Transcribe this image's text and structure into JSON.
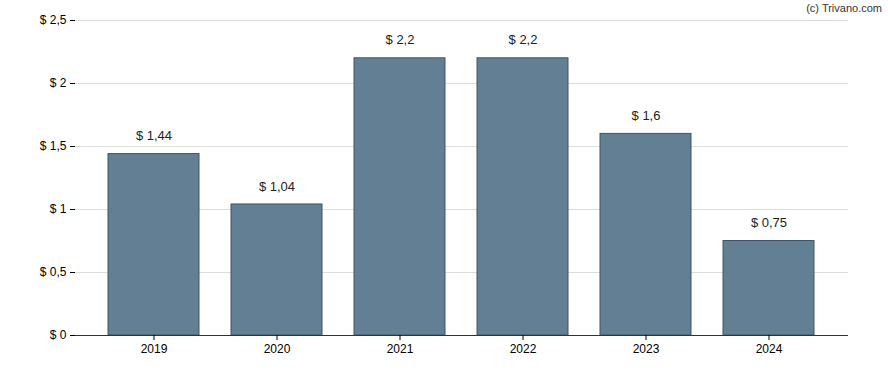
{
  "chart_data": {
    "type": "bar",
    "annotations": [
      "(c) Trivano.com"
    ],
    "categories": [
      "2019",
      "2020",
      "2021",
      "2022",
      "2023",
      "2024"
    ],
    "values": [
      1.44,
      1.04,
      2.2,
      2.2,
      1.6,
      0.75
    ],
    "value_labels": [
      "$ 1,44",
      "$ 1,04",
      "$ 2,2",
      "$ 2,2",
      "$ 1,6",
      "$ 0,75"
    ],
    "data_labels": true,
    "color": "#637f94",
    "ylim": [
      0,
      2.5
    ],
    "yticks": [
      {
        "value": 0,
        "label": "$ 0"
      },
      {
        "value": 0.5,
        "label": "$ 0,5"
      },
      {
        "value": 1,
        "label": "$ 1"
      },
      {
        "value": 1.5,
        "label": "$ 1,5"
      },
      {
        "value": 2,
        "label": "$ 2"
      },
      {
        "value": 2.5,
        "label": "$ 2,5"
      }
    ],
    "grid": true
  }
}
